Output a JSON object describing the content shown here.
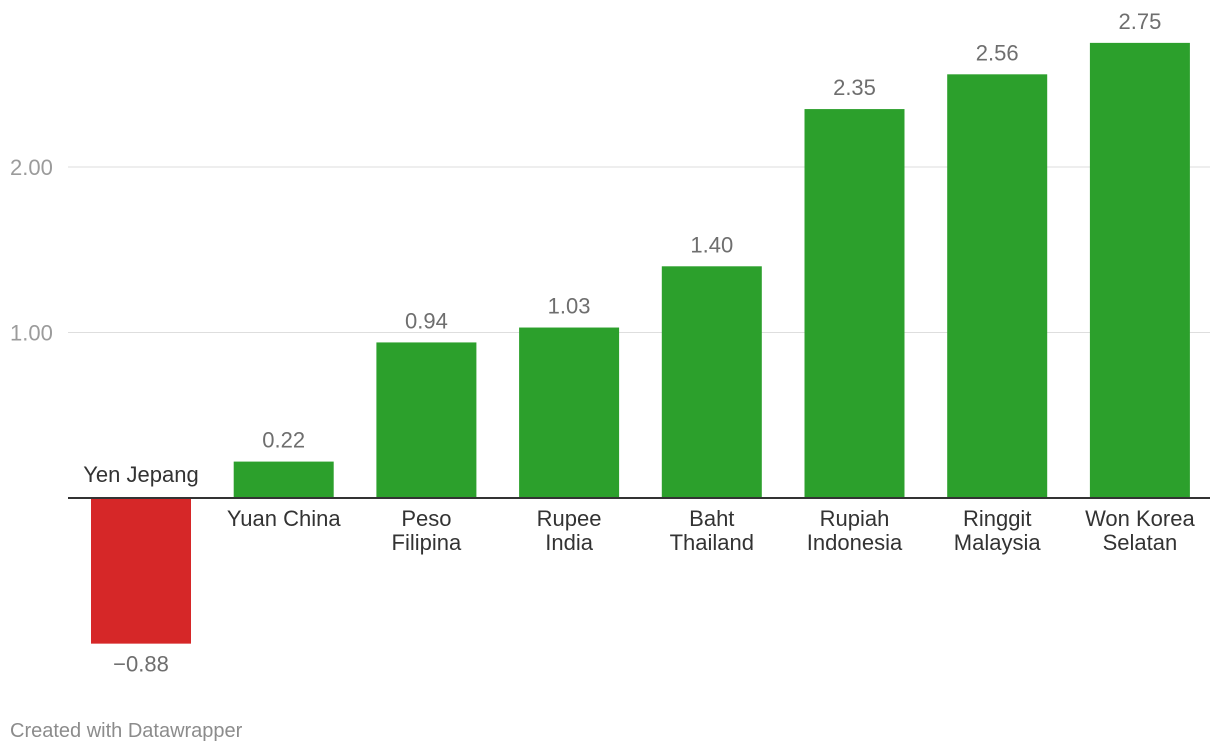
{
  "chart_data": {
    "type": "bar",
    "categories": [
      "Yen Jepang",
      "Yuan China",
      "Peso Filipina",
      "Rupee India",
      "Baht Thailand",
      "Rupiah Indonesia",
      "Ringgit Malaysia",
      "Won Korea Selatan"
    ],
    "values": [
      -0.88,
      0.22,
      0.94,
      1.03,
      1.4,
      2.35,
      2.56,
      2.75
    ],
    "value_labels": [
      "−0.88",
      "0.22",
      "0.94",
      "1.03",
      "1.40",
      "2.35",
      "2.56",
      "2.75"
    ],
    "category_lines": [
      [
        "Yen Jepang"
      ],
      [
        "Yuan China"
      ],
      [
        "Peso",
        "Filipina"
      ],
      [
        "Rupee",
        "India"
      ],
      [
        "Baht",
        "Thailand"
      ],
      [
        "Rupiah",
        "Indonesia"
      ],
      [
        "Ringgit",
        "Malaysia"
      ],
      [
        "Won Korea",
        "Selatan"
      ]
    ],
    "y_ticks": [
      1.0,
      2.0
    ],
    "y_tick_labels": [
      "1.00",
      "2.00"
    ],
    "ylim": [
      -1.2,
      2.9
    ],
    "grid": true,
    "colors": {
      "positive": "#2ca02c",
      "negative": "#d62728"
    }
  },
  "footer": {
    "credit": "Created with Datawrapper"
  }
}
